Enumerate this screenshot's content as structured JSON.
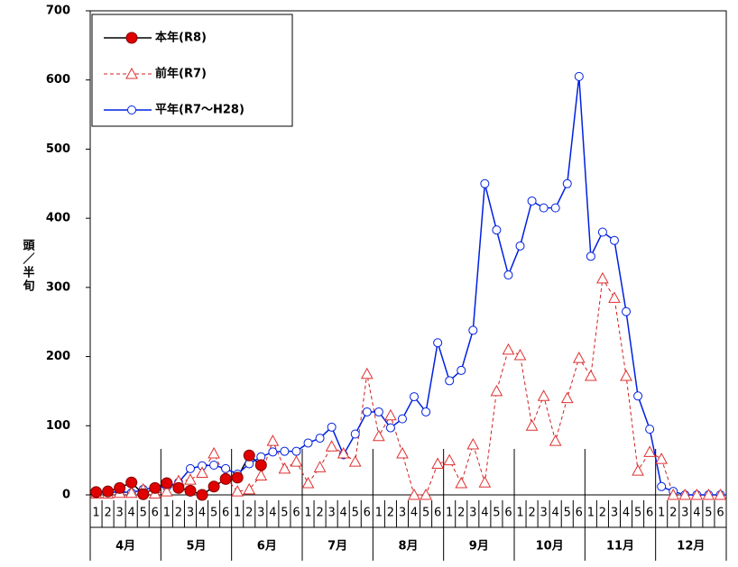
{
  "chart_data": {
    "type": "line",
    "y_label": "頭／半旬",
    "months": [
      "4月",
      "5月",
      "6月",
      "7月",
      "8月",
      "9月",
      "10月",
      "11月",
      "12月"
    ],
    "categories": [
      "1",
      "2",
      "3",
      "4",
      "5",
      "6",
      "1",
      "2",
      "3",
      "4",
      "5",
      "6",
      "1",
      "2",
      "3",
      "4",
      "5",
      "6",
      "1",
      "2",
      "3",
      "4",
      "5",
      "6",
      "1",
      "2",
      "3",
      "4",
      "5",
      "6",
      "1",
      "2",
      "3",
      "4",
      "5",
      "6",
      "1",
      "2",
      "3",
      "4",
      "5",
      "6",
      "1",
      "2",
      "3",
      "4",
      "5",
      "6",
      "1",
      "2",
      "3",
      "4",
      "5",
      "6"
    ],
    "ylim": [
      0,
      700
    ],
    "yticks": [
      0,
      100,
      200,
      300,
      400,
      500,
      600,
      700
    ],
    "series": [
      {
        "name": "本年(R8)",
        "color": "#000000",
        "marker": "circle",
        "marker_fill": "#e00000",
        "marker_stroke": "#800000",
        "dashed": false,
        "values": [
          4,
          5,
          10,
          18,
          1,
          10,
          17,
          10,
          6,
          0,
          12,
          23,
          25,
          57,
          43,
          null,
          null,
          null,
          null,
          null,
          null,
          null,
          null,
          null,
          null,
          null,
          null,
          null,
          null,
          null,
          null,
          null,
          null,
          null,
          null,
          null,
          null,
          null,
          null,
          null,
          null,
          null,
          null,
          null,
          null,
          null,
          null,
          null,
          null,
          null,
          null,
          null,
          null,
          null
        ]
      },
      {
        "name": "前年(R7)",
        "color": "#d02020",
        "marker": "triangle",
        "marker_fill": "#ffffff",
        "marker_stroke": "#e03030",
        "dashed": true,
        "values": [
          2,
          2,
          3,
          3,
          8,
          2,
          5,
          20,
          22,
          32,
          60,
          25,
          5,
          8,
          28,
          78,
          38,
          48,
          17,
          40,
          70,
          60,
          48,
          175,
          85,
          115,
          60,
          0,
          0,
          45,
          50,
          17,
          73,
          18,
          150,
          210,
          202,
          100,
          143,
          78,
          140,
          198,
          172,
          313,
          285,
          172,
          35,
          62,
          52,
          0,
          0,
          0,
          0,
          0
        ]
      },
      {
        "name": "平年(R7～H28)",
        "color": "#0020e0",
        "marker": "circle",
        "marker_fill": "#ffffff",
        "marker_stroke": "#0020e0",
        "dashed": false,
        "values": [
          3,
          3,
          5,
          3,
          8,
          10,
          12,
          18,
          38,
          42,
          43,
          38,
          30,
          45,
          55,
          62,
          63,
          63,
          75,
          82,
          98,
          58,
          88,
          120,
          120,
          97,
          110,
          142,
          120,
          220,
          165,
          180,
          238,
          450,
          383,
          318,
          360,
          425,
          415,
          415,
          450,
          605,
          345,
          380,
          368,
          265,
          143,
          95,
          12,
          5,
          0,
          0,
          0,
          0
        ]
      }
    ]
  }
}
